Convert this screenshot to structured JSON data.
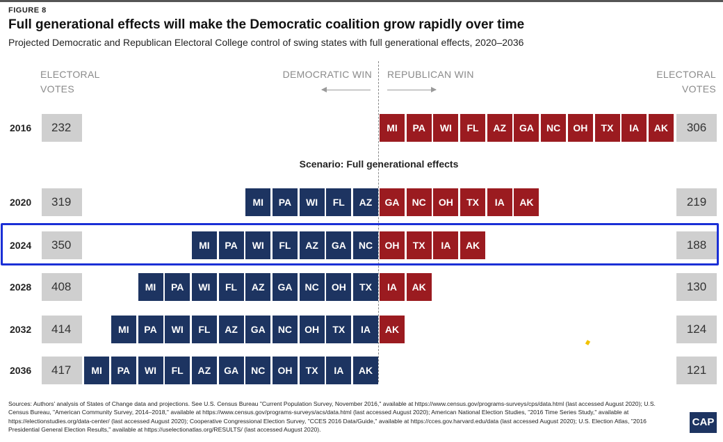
{
  "figure_label": "FIGURE 8",
  "title": "Full generational effects will make the Democratic coalition grow rapidly over time",
  "subtitle": "Projected Democratic and Republican Electoral College control of swing states with full generational effects, 2020–2036",
  "headers": {
    "ev_left_line1": "ELECTORAL",
    "ev_left_line2": "VOTES",
    "dem_win": "DEMOCRATIC WIN",
    "rep_win": "REPUBLICAN WIN",
    "ev_right_line1": "ELECTORAL",
    "ev_right_line2": "VOTES"
  },
  "scenario_label": "Scenario: Full generational effects",
  "colors": {
    "democratic": "#1d3461",
    "republican": "#9b1b20",
    "highlight": "#1a2fd6",
    "ev_box": "#cfcfcf"
  },
  "chart_data": {
    "type": "table",
    "highlighted_year": "2024",
    "rows": [
      {
        "year": "2016",
        "dem_ev": "232",
        "rep_ev": "306",
        "dem_states": [],
        "rep_states": [
          "MI",
          "PA",
          "WI",
          "FL",
          "AZ",
          "GA",
          "NC",
          "OH",
          "TX",
          "IA",
          "AK"
        ]
      },
      {
        "year": "2020",
        "dem_ev": "319",
        "rep_ev": "219",
        "dem_states": [
          "MI",
          "PA",
          "WI",
          "FL",
          "AZ"
        ],
        "rep_states": [
          "GA",
          "NC",
          "OH",
          "TX",
          "IA",
          "AK"
        ]
      },
      {
        "year": "2024",
        "dem_ev": "350",
        "rep_ev": "188",
        "dem_states": [
          "MI",
          "PA",
          "WI",
          "FL",
          "AZ",
          "GA",
          "NC"
        ],
        "rep_states": [
          "OH",
          "TX",
          "IA",
          "AK"
        ]
      },
      {
        "year": "2028",
        "dem_ev": "408",
        "rep_ev": "130",
        "dem_states": [
          "MI",
          "PA",
          "WI",
          "FL",
          "AZ",
          "GA",
          "NC",
          "OH",
          "TX"
        ],
        "rep_states": [
          "IA",
          "AK"
        ]
      },
      {
        "year": "2032",
        "dem_ev": "414",
        "rep_ev": "124",
        "dem_states": [
          "MI",
          "PA",
          "WI",
          "FL",
          "AZ",
          "GA",
          "NC",
          "OH",
          "TX",
          "IA"
        ],
        "rep_states": [
          "AK"
        ]
      },
      {
        "year": "2036",
        "dem_ev": "417",
        "rep_ev": "121",
        "dem_states": [
          "MI",
          "PA",
          "WI",
          "FL",
          "AZ",
          "GA",
          "NC",
          "OH",
          "TX",
          "IA",
          "AK"
        ],
        "rep_states": []
      }
    ]
  },
  "sources": "Sources: Authors' analysis of States of Change data and projections. See U.S. Census Bureau \"Current Population Survey, November 2016,\" available at https://www.census.gov/programs-surveys/cps/data.html (last accessed August 2020); U.S. Census Bureau, \"American Community Survey, 2014–2018,\" available at https://www.census.gov/programs-surveys/acs/data.html (last accessed August 2020); American National Election Studies, \"2016 Time Series Study,\" available at https://electionstudies.org/data-center/ (last accessed August 2020); Cooperative Congressional Election Survey, \"CCES 2016 Data/Guide,\" available at https://cces.gov.harvard.edu/data (last accessed August 2020); U.S. Election Atlas, \"2016 Presidential General Election Results,\" available at https://uselectionatlas.org/RESULTS/ (last accessed August 2020).",
  "logo_text": "CAP"
}
